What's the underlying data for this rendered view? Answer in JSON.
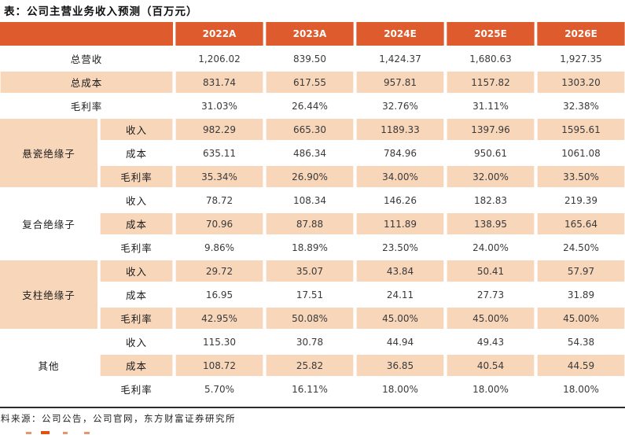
{
  "title": "表：公司主营业务收入预测（百万元）",
  "table": {
    "col_headers": [
      "2022A",
      "2023A",
      "2024E",
      "2025E",
      "2026E"
    ],
    "summary_rows": [
      {
        "label": "总营收",
        "values": [
          "1,206.02",
          "839.50",
          "1,424.37",
          "1,680.63",
          "1,927.35"
        ]
      },
      {
        "label": "总成本",
        "values": [
          "831.74",
          "617.55",
          "957.81",
          "1157.82",
          "1303.20"
        ]
      },
      {
        "label": "毛利率",
        "values": [
          "31.03%",
          "26.44%",
          "32.76%",
          "31.11%",
          "32.38%"
        ]
      }
    ],
    "segments": [
      {
        "name": "悬瓷绝缘子",
        "rows": [
          {
            "label": "收入",
            "values": [
              "982.29",
              "665.30",
              "1189.33",
              "1397.96",
              "1595.61"
            ]
          },
          {
            "label": "成本",
            "values": [
              "635.11",
              "486.34",
              "784.96",
              "950.61",
              "1061.08"
            ]
          },
          {
            "label": "毛利率",
            "values": [
              "35.34%",
              "26.90%",
              "34.00%",
              "32.00%",
              "33.50%"
            ]
          }
        ]
      },
      {
        "name": "复合绝缘子",
        "rows": [
          {
            "label": "收入",
            "values": [
              "78.72",
              "108.34",
              "146.26",
              "182.83",
              "219.39"
            ]
          },
          {
            "label": "成本",
            "values": [
              "70.96",
              "87.88",
              "111.89",
              "138.95",
              "165.64"
            ]
          },
          {
            "label": "毛利率",
            "values": [
              "9.86%",
              "18.89%",
              "23.50%",
              "24.00%",
              "24.50%"
            ]
          }
        ]
      },
      {
        "name": "支柱绝缘子",
        "rows": [
          {
            "label": "收入",
            "values": [
              "29.72",
              "35.07",
              "43.84",
              "50.41",
              "57.97"
            ]
          },
          {
            "label": "成本",
            "values": [
              "16.95",
              "17.51",
              "24.11",
              "27.73",
              "31.89"
            ]
          },
          {
            "label": "毛利率",
            "values": [
              "42.95%",
              "50.08%",
              "45.00%",
              "45.00%",
              "45.00%"
            ]
          }
        ]
      },
      {
        "name": "其他",
        "rows": [
          {
            "label": "收入",
            "values": [
              "115.30",
              "30.78",
              "44.94",
              "49.43",
              "54.38"
            ]
          },
          {
            "label": "成本",
            "values": [
              "108.72",
              "25.82",
              "36.85",
              "40.54",
              "44.59"
            ]
          },
          {
            "label": "毛利率",
            "values": [
              "5.70%",
              "16.11%",
              "18.00%",
              "18.00%",
              "18.00%"
            ]
          }
        ]
      }
    ]
  },
  "footer": {
    "source": "资料来源：公司公告，公司官网，东方财富证券研究所"
  },
  "colors": {
    "header_bg": "#dd5b2d",
    "stripe_bg": "#f8d6ba",
    "accent": "#e4500f"
  }
}
